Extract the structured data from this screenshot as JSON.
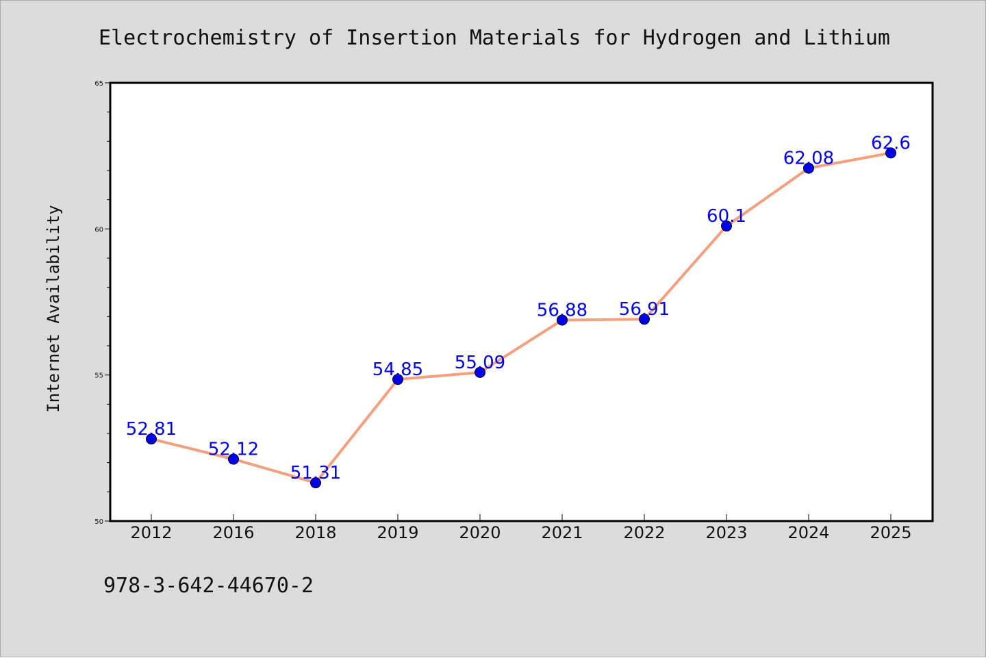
{
  "chart_data": {
    "type": "line",
    "title": "Electrochemistry of Insertion Materials for Hydrogen and Lithium",
    "ylabel": "Internet Availability",
    "categories": [
      "2012",
      "2016",
      "2018",
      "2019",
      "2020",
      "2021",
      "2022",
      "2023",
      "2024",
      "2025"
    ],
    "values": [
      52.81,
      52.12,
      51.31,
      54.85,
      55.09,
      56.88,
      56.91,
      60.1,
      62.08,
      62.6
    ],
    "data_labels": [
      "52.81",
      "52.12",
      "51.31",
      "54.85",
      "55.09",
      "56.88",
      "56.91",
      "60.1",
      "62.08",
      "62.6"
    ],
    "ylim": [
      50,
      65
    ],
    "yticks": [
      "50",
      "55",
      "60",
      "65"
    ],
    "line_color": "#f4a07e",
    "marker_color": "#0000ee",
    "label_color": "#0000ee",
    "background_color": "#dcdcdc",
    "plot_background_color": "#ffffff",
    "grid": false,
    "legend": "none"
  },
  "footer": {
    "text": "978-3-642-44670-2"
  }
}
